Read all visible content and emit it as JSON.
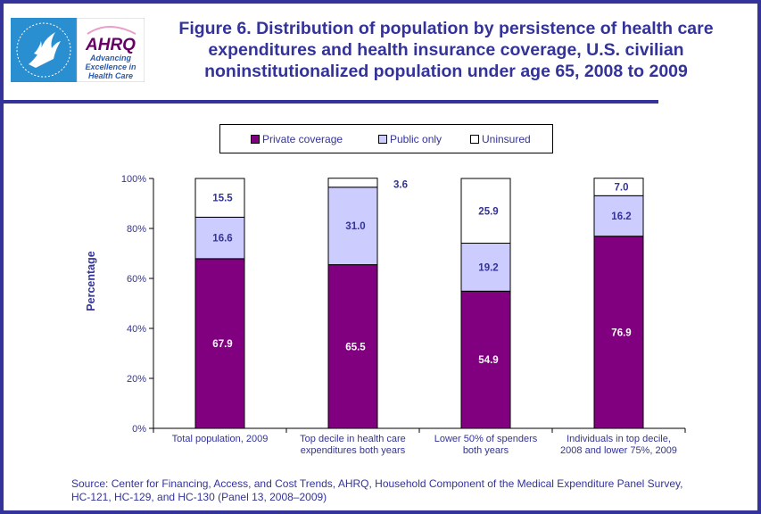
{
  "header": {
    "logo": {
      "hhs_seal": "HHS seal",
      "brand": "AHRQ",
      "tagline_lines": [
        "Advancing",
        "Excellence in",
        "Health Care"
      ]
    },
    "title_lines": [
      "Figure 6. Distribution of population by persistence of health care",
      "expenditures and health insurance coverage, U.S. civilian",
      "noninstitutionalized  population under age 65, 2008 to 2009"
    ]
  },
  "colors": {
    "frame": "#333399",
    "text": "#333399",
    "private": "#800080",
    "public": "#CCCCFF",
    "uninsured": "#FFFFFF"
  },
  "chart_data": {
    "type": "bar",
    "stacked": true,
    "title": "Figure 6. Distribution of population by persistence of health care expenditures and health insurance coverage, U.S. civilian noninstitutionalized population under age 65, 2008 to 2009",
    "xlabel": "",
    "ylabel": "Percentage",
    "ylim": [
      0,
      100
    ],
    "yticks": [
      "0%",
      "20%",
      "40%",
      "60%",
      "80%",
      "100%"
    ],
    "ytick_values": [
      0,
      20,
      40,
      60,
      80,
      100
    ],
    "grid": false,
    "legend_position": "top",
    "categories": [
      [
        "Total population, 2009"
      ],
      [
        "Top decile in health care",
        "expenditures both years"
      ],
      [
        "Lower 50% of spenders",
        "both years"
      ],
      [
        "Individuals in top decile,",
        "2008 and lower 75%, 2009"
      ]
    ],
    "series": [
      {
        "name": "Private coverage",
        "color": "#800080",
        "label_color": "#FFFFFF",
        "values": [
          67.9,
          65.5,
          54.9,
          76.9
        ]
      },
      {
        "name": "Public only",
        "color": "#CCCCFF",
        "label_color": "#333399",
        "values": [
          16.6,
          31.0,
          19.2,
          16.2
        ]
      },
      {
        "name": "Uninsured",
        "color": "#FFFFFF",
        "label_color": "#333399",
        "values": [
          15.5,
          3.6,
          25.9,
          7.0
        ]
      }
    ],
    "data_labels": [
      [
        "67.9",
        "65.5",
        "54.9",
        "76.9"
      ],
      [
        "16.6",
        "31.0",
        "19.2",
        "16.2"
      ],
      [
        "15.5",
        "3.6",
        "25.9",
        "7.0"
      ]
    ]
  },
  "source_lines": [
    "Source: Center for Financing, Access, and Cost Trends, AHRQ, Household Component of the Medical Expenditure Panel Survey,",
    "HC-121, HC-129, and HC-130 (Panel 13, 2008–2009)"
  ]
}
